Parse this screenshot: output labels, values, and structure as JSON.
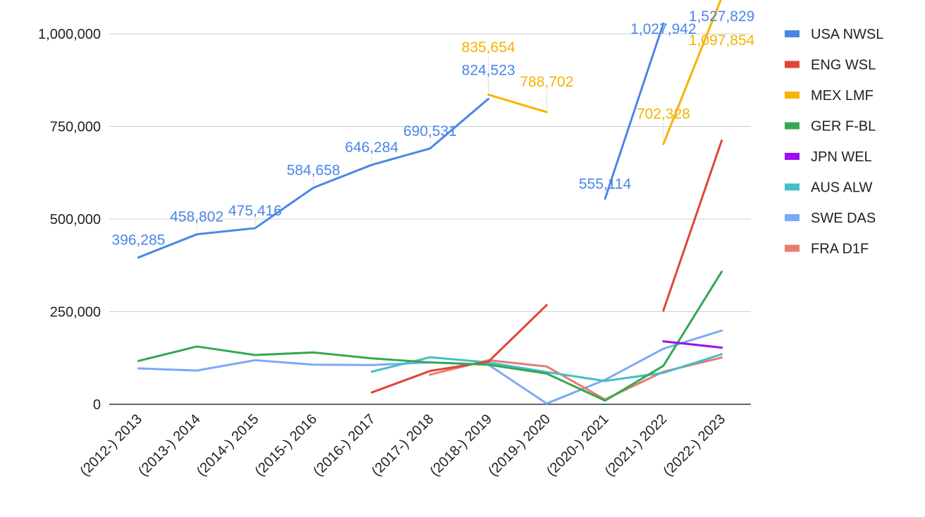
{
  "chart_data": {
    "type": "line",
    "title": "",
    "xlabel": "",
    "ylabel": "",
    "categories": [
      "(2012-) 2013",
      "(2013-) 2014",
      "(2014-) 2015",
      "(2015-) 2016",
      "(2016-) 2017",
      "(2017-) 2018",
      "(2018-) 2019",
      "(2019-) 2020",
      "(2020-) 2021",
      "(2021-) 2022",
      "(2022-) 2023"
    ],
    "ylim": [
      0,
      1000000
    ],
    "yticks": [
      0,
      250000,
      500000,
      750000,
      1000000
    ],
    "ytick_labels": [
      "0",
      "250,000",
      "500,000",
      "750,000",
      "1,000,000"
    ],
    "grid": true,
    "legend_position": "right",
    "series": [
      {
        "name": "USA NWSL",
        "color": "#4a86e8",
        "values": [
          396285,
          458802,
          475416,
          584658,
          646284,
          690531,
          824523,
          null,
          555114,
          1027942,
          null
        ],
        "labels": [
          "396,285",
          "458,802",
          "475,416",
          "584,658",
          "646,284",
          "690,531",
          "824,523",
          null,
          "555,114",
          "1,027,942",
          "1,527,829"
        ],
        "off_scale_values": [
          null,
          null,
          null,
          null,
          null,
          null,
          null,
          null,
          null,
          null,
          1527829
        ]
      },
      {
        "name": "ENG WSL",
        "color": "#e0453a",
        "values": [
          null,
          null,
          null,
          null,
          32000,
          90000,
          115000,
          268000,
          null,
          253000,
          712000
        ]
      },
      {
        "name": "MEX LMF",
        "color": "#f4b400",
        "values": [
          null,
          null,
          null,
          null,
          null,
          null,
          835654,
          788702,
          null,
          702328,
          1097854
        ],
        "labels": [
          null,
          null,
          null,
          null,
          null,
          null,
          "835,654",
          "788,702",
          null,
          "702,328",
          "1,097,854"
        ]
      },
      {
        "name": "GER F-BL",
        "color": "#34a853",
        "values": [
          117000,
          156000,
          133000,
          140000,
          124000,
          113000,
          107000,
          83000,
          10000,
          104000,
          358000
        ]
      },
      {
        "name": "JPN WEL",
        "color": "#9c0ff2",
        "values": [
          null,
          null,
          null,
          null,
          null,
          null,
          null,
          null,
          null,
          170000,
          153000
        ]
      },
      {
        "name": "AUS ALW",
        "color": "#46bdc6",
        "values": [
          null,
          null,
          null,
          null,
          88000,
          127000,
          113000,
          87000,
          63000,
          85000,
          135000
        ]
      },
      {
        "name": "SWE DAS",
        "color": "#7baaf7",
        "values": [
          97000,
          91000,
          119000,
          107000,
          106000,
          113000,
          107000,
          2000,
          66000,
          150000,
          199000
        ]
      },
      {
        "name": "FRA D1F",
        "color": "#e67c73",
        "values": [
          null,
          null,
          null,
          null,
          null,
          80000,
          119000,
          102000,
          13000,
          88000,
          126000
        ]
      }
    ]
  }
}
